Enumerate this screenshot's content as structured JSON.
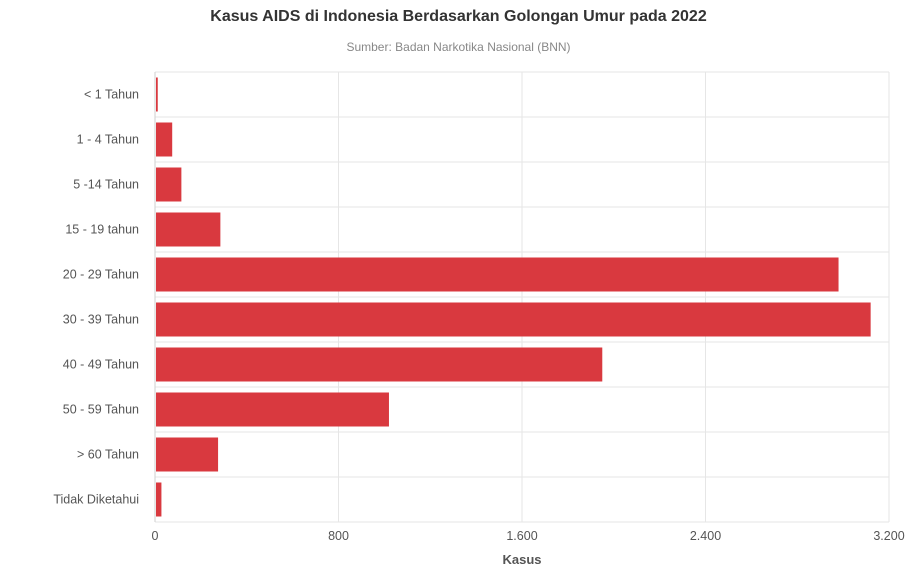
{
  "chart_data": {
    "type": "bar",
    "orientation": "horizontal",
    "title": "Kasus AIDS di Indonesia Berdasarkan Golongan Umur pada 2022",
    "subtitle": "Sumber: Badan Narkotika Nasional (BNN)",
    "xlabel": "Kasus",
    "ylabel": "",
    "categories": [
      "< 1 Tahun",
      "1 - 4 Tahun",
      "5 -14 Tahun",
      "15 - 19 tahun",
      "20 - 29 Tahun",
      "30 - 39 Tahun",
      "40 - 49 Tahun",
      "50 - 59 Tahun",
      "> 60 Tahun",
      "Tidak Diketahui"
    ],
    "values": [
      12,
      75,
      115,
      285,
      2980,
      3120,
      1950,
      1020,
      275,
      28
    ],
    "xlim": [
      0,
      3200
    ],
    "ticks": [
      0,
      800,
      1600,
      2400,
      3200
    ],
    "tick_labels": [
      "0",
      "800",
      "1.600",
      "2.400",
      "3.200"
    ],
    "bar_color": "#d9393f",
    "grid": true
  }
}
